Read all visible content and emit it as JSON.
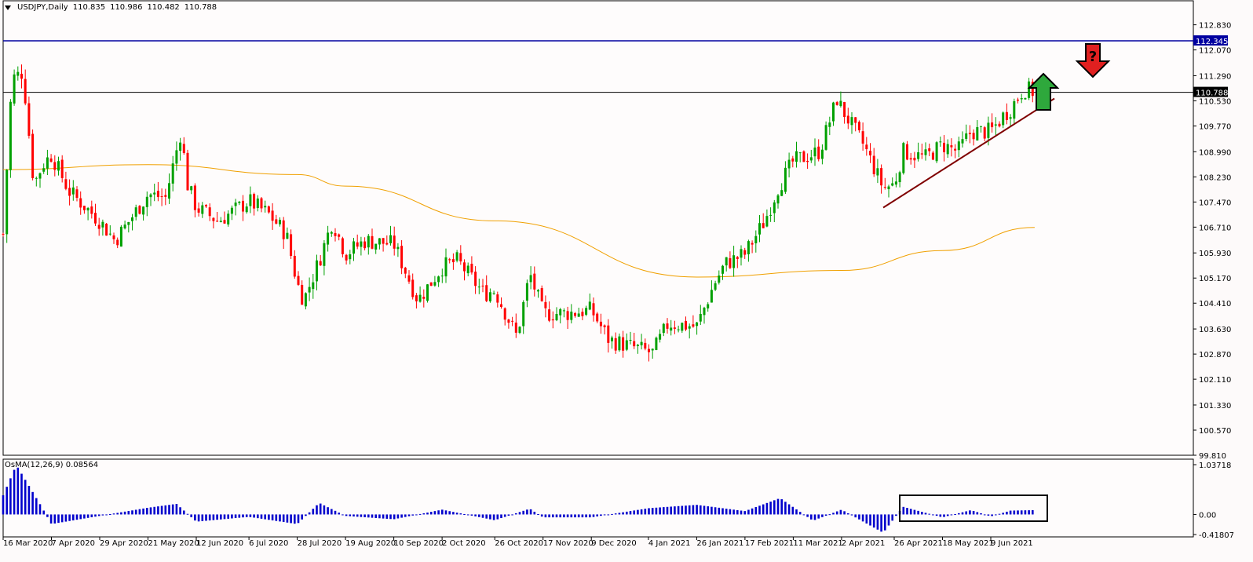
{
  "header": {
    "symbol": "USDJPY,Daily",
    "open": "110.835",
    "high": "110.986",
    "low": "110.482",
    "close": "110.788"
  },
  "oscillator": {
    "label": "OsMA(12,26,9) 0.08564",
    "y_labels": [
      "1.03718",
      "0.00",
      "-0.41807"
    ]
  },
  "colors": {
    "bull": "#00A000",
    "bear": "#FF0000",
    "ma": "#F0A000",
    "resistance": "#0000A0",
    "trendline": "#800000",
    "histogram": "#0000CC",
    "up_arrow": "#2EA83C",
    "down_arrow": "#E02020"
  },
  "icons": {
    "up": "green-up-arrow-icon",
    "down": "red-down-arrow-question-icon",
    "down_text": "?"
  },
  "chart_data": {
    "type": "candlestick",
    "title": "USDJPY,Daily",
    "ylim": [
      99.81,
      113.2
    ],
    "y_ticks": [
      "112.830",
      "112.070",
      "111.290",
      "110.530",
      "109.770",
      "108.990",
      "108.230",
      "107.470",
      "106.710",
      "105.930",
      "105.170",
      "104.410",
      "103.630",
      "102.870",
      "102.110",
      "101.330",
      "100.570",
      "99.810"
    ],
    "x_ticks": [
      "16 Mar 2020",
      "7 Apr 2020",
      "29 Apr 2020",
      "21 May 2020",
      "12 Jun 2020",
      "6 Jul 2020",
      "28 Jul 2020",
      "19 Aug 2020",
      "10 Sep 2020",
      "2 Oct 2020",
      "26 Oct 2020",
      "17 Nov 2020",
      "9 Dec 2020",
      "4 Jan 2021",
      "26 Jan 2021",
      "17 Feb 2021",
      "11 Mar 2021",
      "2 Apr 2021",
      "26 Apr 2021",
      "18 May 2021",
      "9 Jun 2021"
    ],
    "resistance_level": "112.345",
    "current_price": "110.788",
    "price_path": [
      {
        "date": "16 Mar 2020",
        "price": 106.5
      },
      {
        "date": "20 Mar 2020",
        "price": 111.2
      },
      {
        "date": "25 Mar 2020",
        "price": 111.4
      },
      {
        "date": "30 Mar 2020",
        "price": 108.0
      },
      {
        "date": "3 Apr 2020",
        "price": 108.6
      },
      {
        "date": "7 Apr 2020",
        "price": 108.9
      },
      {
        "date": "15 Apr 2020",
        "price": 107.8
      },
      {
        "date": "29 Apr 2020",
        "price": 106.9
      },
      {
        "date": "6 May 2020",
        "price": 106.3
      },
      {
        "date": "21 May 2020",
        "price": 107.7
      },
      {
        "date": "29 May 2020",
        "price": 107.6
      },
      {
        "date": "5 Jun 2020",
        "price": 109.6
      },
      {
        "date": "8 Jun 2020",
        "price": 108.0
      },
      {
        "date": "12 Jun 2020",
        "price": 107.3
      },
      {
        "date": "22 Jun 2020",
        "price": 106.9
      },
      {
        "date": "6 Jul 2020",
        "price": 107.5
      },
      {
        "date": "15 Jul 2020",
        "price": 107.1
      },
      {
        "date": "23 Jul 2020",
        "price": 106.5
      },
      {
        "date": "28 Jul 2020",
        "price": 105.0
      },
      {
        "date": "31 Jul 2020",
        "price": 104.5
      },
      {
        "date": "7 Aug 2020",
        "price": 105.7
      },
      {
        "date": "13 Aug 2020",
        "price": 106.9
      },
      {
        "date": "19 Aug 2020",
        "price": 105.9
      },
      {
        "date": "28 Aug 2020",
        "price": 106.3
      },
      {
        "date": "10 Sep 2020",
        "price": 106.2
      },
      {
        "date": "21 Sep 2020",
        "price": 104.5
      },
      {
        "date": "2 Oct 2020",
        "price": 105.5
      },
      {
        "date": "9 Oct 2020",
        "price": 105.7
      },
      {
        "date": "21 Oct 2020",
        "price": 104.7
      },
      {
        "date": "26 Oct 2020",
        "price": 104.8
      },
      {
        "date": "5 Nov 2020",
        "price": 103.4
      },
      {
        "date": "11 Nov 2020",
        "price": 105.3
      },
      {
        "date": "17 Nov 2020",
        "price": 104.1
      },
      {
        "date": "27 Nov 2020",
        "price": 104.1
      },
      {
        "date": "9 Dec 2020",
        "price": 104.2
      },
      {
        "date": "17 Dec 2020",
        "price": 103.3
      },
      {
        "date": "6 Jan 2021",
        "price": 102.9
      },
      {
        "date": "13 Jan 2021",
        "price": 103.8
      },
      {
        "date": "26 Jan 2021",
        "price": 103.7
      },
      {
        "date": "3 Feb 2021",
        "price": 105.0
      },
      {
        "date": "8 Feb 2021",
        "price": 105.6
      },
      {
        "date": "17 Feb 2021",
        "price": 105.9
      },
      {
        "date": "26 Feb 2021",
        "price": 106.9
      },
      {
        "date": "4 Mar 2021",
        "price": 107.9
      },
      {
        "date": "11 Mar 2021",
        "price": 108.7
      },
      {
        "date": "23 Mar 2021",
        "price": 109.0
      },
      {
        "date": "31 Mar 2021",
        "price": 110.6
      },
      {
        "date": "2 Apr 2021",
        "price": 110.3
      },
      {
        "date": "12 Apr 2021",
        "price": 109.2
      },
      {
        "date": "21 Apr 2021",
        "price": 107.9
      },
      {
        "date": "26 Apr 2021",
        "price": 108.0
      },
      {
        "date": "30 Apr 2021",
        "price": 109.0
      },
      {
        "date": "10 May 2021",
        "price": 108.8
      },
      {
        "date": "18 May 2021",
        "price": 109.2
      },
      {
        "date": "25 May 2021",
        "price": 109.0
      },
      {
        "date": "31 May 2021",
        "price": 109.6
      },
      {
        "date": "9 Jun 2021",
        "price": 109.6
      },
      {
        "date": "15 Jun 2021",
        "price": 110.1
      },
      {
        "date": "18 Jun 2021",
        "price": 110.3
      },
      {
        "date": "24 Jun 2021",
        "price": 110.9
      },
      {
        "date": "29 Jun 2021",
        "price": 110.8
      }
    ],
    "ma_path": [
      {
        "date": "16 Mar 2020",
        "price": 108.45
      },
      {
        "date": "21 May 2020",
        "price": 108.6
      },
      {
        "date": "28 Jul 2020",
        "price": 108.3
      },
      {
        "date": "19 Aug 2020",
        "price": 107.95
      },
      {
        "date": "26 Oct 2020",
        "price": 106.9
      },
      {
        "date": "26 Jan 2021",
        "price": 105.2
      },
      {
        "date": "2 Apr 2021",
        "price": 105.4
      },
      {
        "date": "18 May 2021",
        "price": 106.0
      },
      {
        "date": "29 Jun 2021",
        "price": 106.7
      }
    ],
    "trendline": [
      {
        "date": "21 Apr 2021",
        "price": 107.3
      },
      {
        "date": "8 Jul 2021",
        "price": 110.6
      }
    ],
    "osma": [
      {
        "date": "16 Mar 2020",
        "value": 0.4
      },
      {
        "date": "22 Mar 2020",
        "value": 1.03
      },
      {
        "date": "2 Apr 2020",
        "value": 0.2
      },
      {
        "date": "7 Apr 2020",
        "value": -0.2
      },
      {
        "date": "29 Apr 2020",
        "value": -0.03
      },
      {
        "date": "21 May 2020",
        "value": 0.14
      },
      {
        "date": "3 Jun 2020",
        "value": 0.22
      },
      {
        "date": "12 Jun 2020",
        "value": -0.15
      },
      {
        "date": "6 Jul 2020",
        "value": -0.05
      },
      {
        "date": "28 Jul 2020",
        "value": -0.2
      },
      {
        "date": "7 Aug 2020",
        "value": 0.24
      },
      {
        "date": "19 Aug 2020",
        "value": -0.03
      },
      {
        "date": "10 Sep 2020",
        "value": -0.1
      },
      {
        "date": "2 Oct 2020",
        "value": 0.1
      },
      {
        "date": "26 Oct 2020",
        "value": -0.12
      },
      {
        "date": "11 Nov 2020",
        "value": 0.12
      },
      {
        "date": "17 Nov 2020",
        "value": -0.06
      },
      {
        "date": "9 Dec 2020",
        "value": -0.06
      },
      {
        "date": "4 Jan 2021",
        "value": 0.13
      },
      {
        "date": "26 Jan 2021",
        "value": 0.2
      },
      {
        "date": "17 Feb 2021",
        "value": 0.07
      },
      {
        "date": "5 Mar 2021",
        "value": 0.34
      },
      {
        "date": "20 Mar 2021",
        "value": -0.13
      },
      {
        "date": "2 Apr 2021",
        "value": 0.1
      },
      {
        "date": "21 Apr 2021",
        "value": -0.38
      },
      {
        "date": "30 Apr 2021",
        "value": 0.16
      },
      {
        "date": "18 May 2021",
        "value": -0.06
      },
      {
        "date": "31 May 2021",
        "value": 0.09
      },
      {
        "date": "9 Jun 2021",
        "value": -0.04
      },
      {
        "date": "18 Jun 2021",
        "value": 0.08
      },
      {
        "date": "29 Jun 2021",
        "value": 0.09
      }
    ],
    "osma_ylim": [
      -0.41807,
      1.03718
    ]
  }
}
